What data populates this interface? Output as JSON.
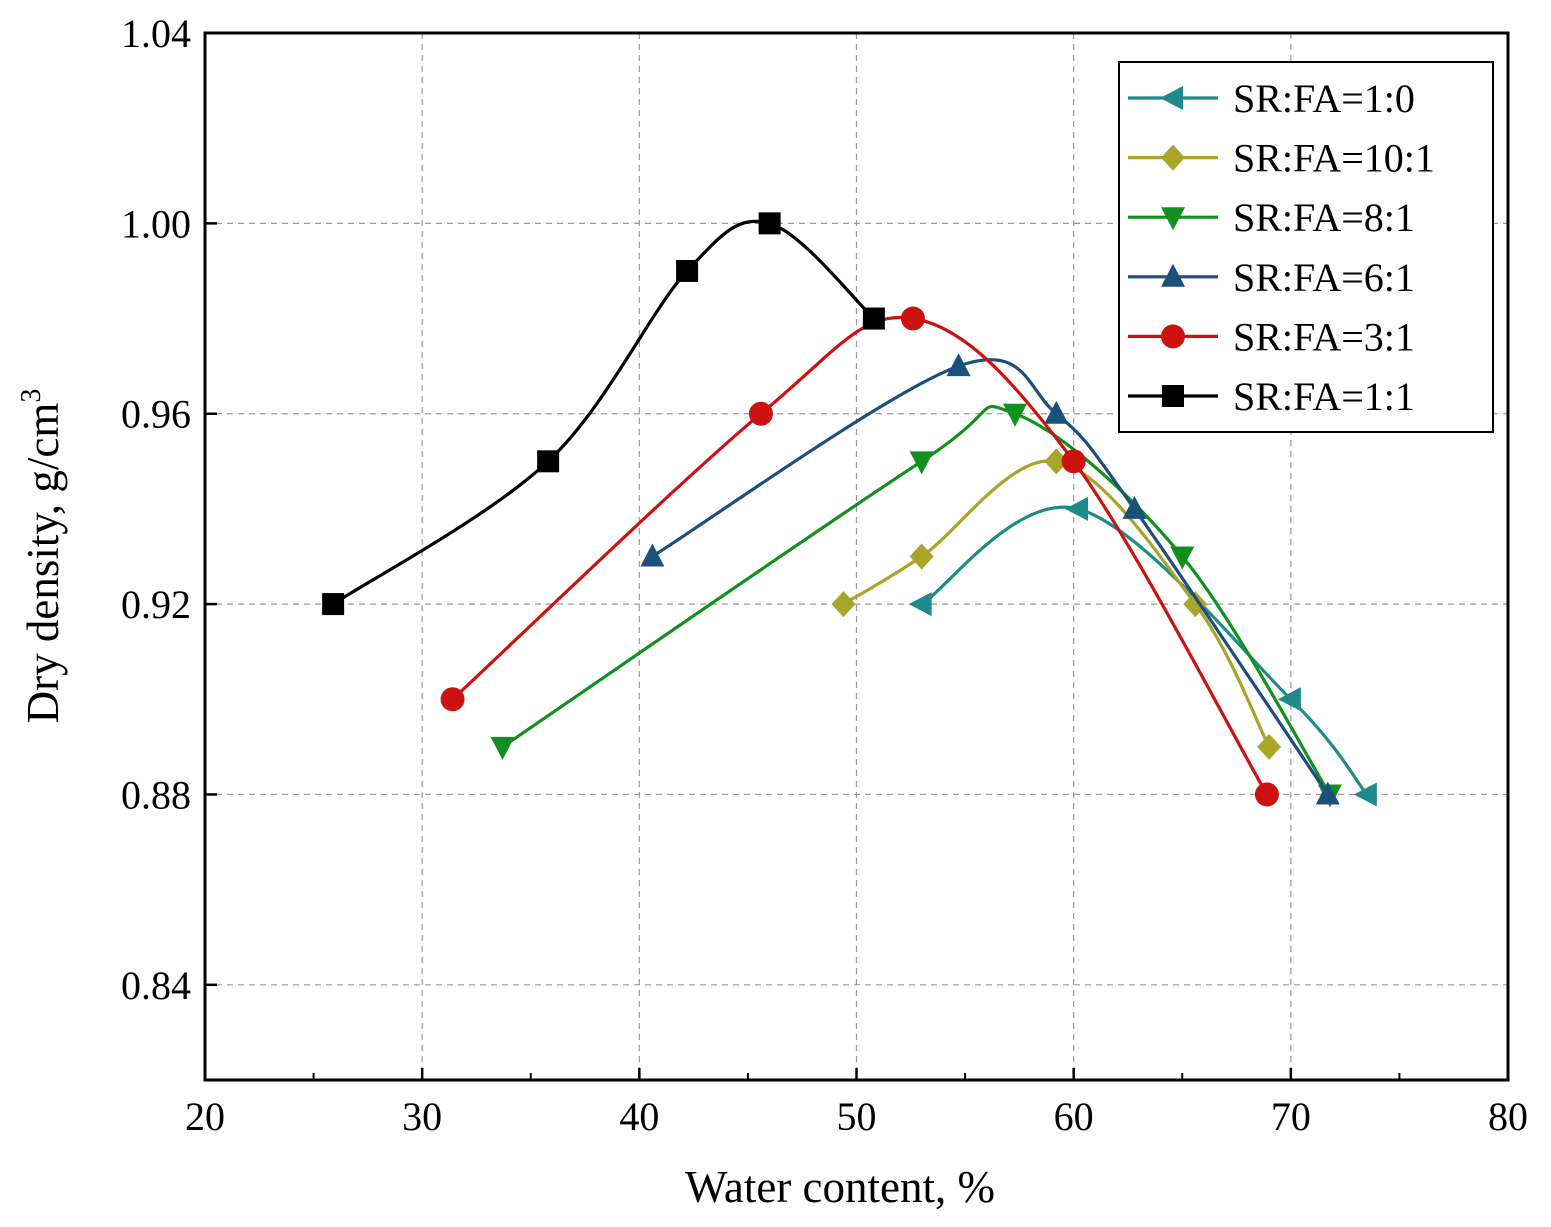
{
  "chart_data": {
    "type": "line",
    "title": "",
    "xlabel": "Water content, %",
    "ylabel_main": "Dry density, g/cm",
    "ylabel_sup": "3",
    "xlim": [
      20,
      80
    ],
    "ylim": [
      0.82,
      1.04
    ],
    "x_ticks": [
      "20",
      "30",
      "40",
      "50",
      "60",
      "70",
      "80"
    ],
    "x_tick_values": [
      20,
      30,
      40,
      50,
      60,
      70,
      80
    ],
    "y_ticks": [
      "0.84",
      "0.88",
      "0.92",
      "0.96",
      "1.00",
      "1.04"
    ],
    "y_tick_values": [
      0.84,
      0.88,
      0.92,
      0.96,
      1.0,
      1.04
    ],
    "grid": true,
    "legend_position": "top-right",
    "series": [
      {
        "name": "SR:FA=1:0",
        "color": "#1f8a8a",
        "marker": "triangle-left",
        "x": [
          53.0,
          60.2,
          70.0,
          73.5
        ],
        "y": [
          0.92,
          0.94,
          0.9,
          0.88
        ]
      },
      {
        "name": "SR:FA=10:1",
        "color": "#a8a528",
        "marker": "diamond",
        "x": [
          49.4,
          53.0,
          59.2,
          65.6,
          69.0
        ],
        "y": [
          0.92,
          0.93,
          0.95,
          0.92,
          0.89
        ]
      },
      {
        "name": "SR:FA=8:1",
        "color": "#11901e",
        "marker": "triangle-down",
        "x": [
          33.7,
          53.0,
          57.3,
          65.0,
          71.8
        ],
        "y": [
          0.89,
          0.95,
          0.96,
          0.93,
          0.88
        ]
      },
      {
        "name": "SR:FA=6:1",
        "color": "#1c4f7c",
        "marker": "triangle-up",
        "x": [
          40.6,
          54.7,
          59.2,
          62.8,
          71.7
        ],
        "y": [
          0.93,
          0.97,
          0.96,
          0.94,
          0.88
        ]
      },
      {
        "name": "SR:FA=3:1",
        "color": "#cc1111",
        "marker": "circle",
        "x": [
          31.4,
          45.6,
          52.6,
          60.0,
          68.9
        ],
        "y": [
          0.9,
          0.96,
          0.98,
          0.95,
          0.88
        ]
      },
      {
        "name": "SR:FA=1:1",
        "color": "#000000",
        "marker": "square",
        "x": [
          25.9,
          35.8,
          42.2,
          46.0,
          50.8
        ],
        "y": [
          0.92,
          0.95,
          0.99,
          1.0,
          0.98
        ]
      }
    ]
  }
}
